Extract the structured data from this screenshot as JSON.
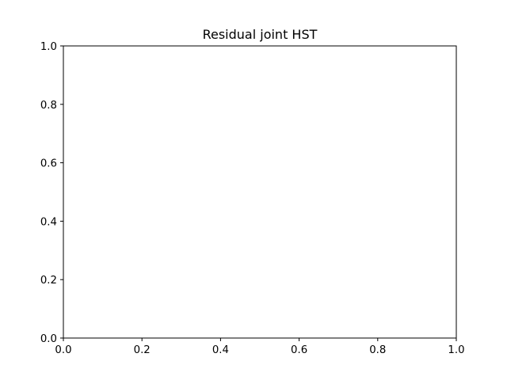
{
  "chart_data": {
    "type": "scatter",
    "title": "Residual joint HST",
    "xlabel": "",
    "ylabel": "",
    "xlim": [
      0.0,
      1.0
    ],
    "ylim": [
      0.0,
      1.0
    ],
    "xticks": [
      0.0,
      0.2,
      0.4,
      0.6,
      0.8,
      1.0
    ],
    "yticks": [
      0.0,
      0.2,
      0.4,
      0.6,
      0.8,
      1.0
    ],
    "xtick_labels": [
      "0.0",
      "0.2",
      "0.4",
      "0.6",
      "0.8",
      "1.0"
    ],
    "ytick_labels": [
      "0.0",
      "0.2",
      "0.4",
      "0.6",
      "0.8",
      "1.0"
    ],
    "grid": false,
    "series": []
  }
}
